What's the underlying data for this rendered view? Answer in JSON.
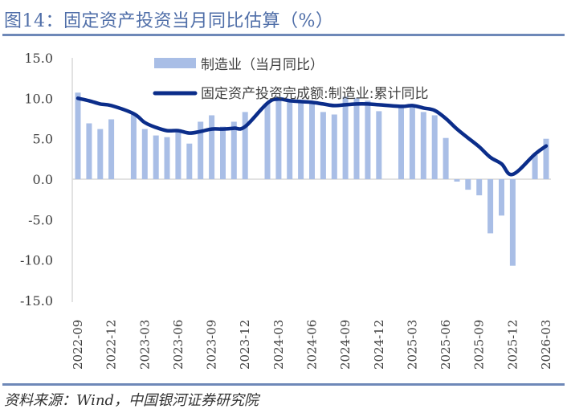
{
  "title": "图14：固定资产投资当月同比估算（%）",
  "source": "资料来源：Wind，中国银河证券研究院",
  "colors": {
    "bar": "#A9BEE6",
    "line": "#0B2D8A",
    "axis": "#D9D9D9",
    "title": "#4F6EA8"
  },
  "chart_data": {
    "type": "bar+line",
    "title": "图14：固定资产投资当月同比估算（%）",
    "xlabel": "",
    "ylabel": "",
    "ylim": [
      -15,
      15
    ],
    "yticks": [
      "15.0",
      "10.0",
      "5.0",
      "0.0",
      "-5.0",
      "-10.0",
      "-15.0"
    ],
    "ytick_values": [
      15,
      10,
      5,
      0,
      -5,
      -10,
      -15
    ],
    "x_start": "2022-09",
    "x_end": "2026-03",
    "xtick_labels": [
      "2022-09",
      "2022-12",
      "2023-03",
      "2023-06",
      "2023-09",
      "2023-12",
      "2024-03",
      "2024-06",
      "2024-09",
      "2024-12",
      "2025-03",
      "2025-06",
      "2025-09",
      "2025-12",
      "2026-03"
    ],
    "legend_position": "top-center",
    "x": [
      "2022-09",
      "2022-10",
      "2022-11",
      "2022-12",
      "2023-02",
      "2023-03",
      "2023-04",
      "2023-05",
      "2023-06",
      "2023-07",
      "2023-08",
      "2023-09",
      "2023-10",
      "2023-11",
      "2023-12",
      "2024-02",
      "2024-03",
      "2024-04",
      "2024-05",
      "2024-06",
      "2024-07",
      "2024-08",
      "2024-09",
      "2024-10",
      "2024-11",
      "2024-12",
      "2025-02",
      "2025-03",
      "2025-04",
      "2025-05",
      "2025-06",
      "2025-07",
      "2025-08",
      "2025-09",
      "2025-10",
      "2025-11",
      "2025-12",
      "2026-02",
      "2026-03"
    ],
    "series": [
      {
        "name": "制造业（当月同比）",
        "type": "bar",
        "values": [
          10.7,
          6.9,
          6.2,
          7.4,
          8.1,
          6.2,
          5.4,
          5.2,
          6.0,
          4.4,
          7.1,
          7.9,
          6.5,
          7.1,
          8.3,
          9.4,
          10.2,
          9.5,
          9.5,
          9.6,
          8.3,
          8.0,
          10.2,
          10.0,
          9.7,
          8.4,
          9.0,
          9.1,
          8.3,
          7.9,
          5.1,
          -0.3,
          -1.3,
          -2.0,
          -6.7,
          -4.5,
          -10.7,
          3.0,
          5.0
        ]
      },
      {
        "name": "固定资产投资完成额:制造业:累计同比",
        "type": "line",
        "values": [
          10.0,
          9.7,
          9.3,
          9.1,
          8.1,
          7.0,
          6.4,
          6.0,
          6.0,
          5.7,
          5.9,
          6.2,
          6.2,
          6.3,
          6.5,
          9.4,
          9.9,
          9.7,
          9.6,
          9.5,
          9.3,
          9.1,
          9.2,
          9.3,
          9.3,
          9.2,
          9.0,
          9.1,
          8.8,
          8.5,
          7.5,
          6.2,
          5.1,
          4.0,
          2.7,
          1.9,
          0.6,
          3.1,
          4.1
        ]
      }
    ]
  }
}
